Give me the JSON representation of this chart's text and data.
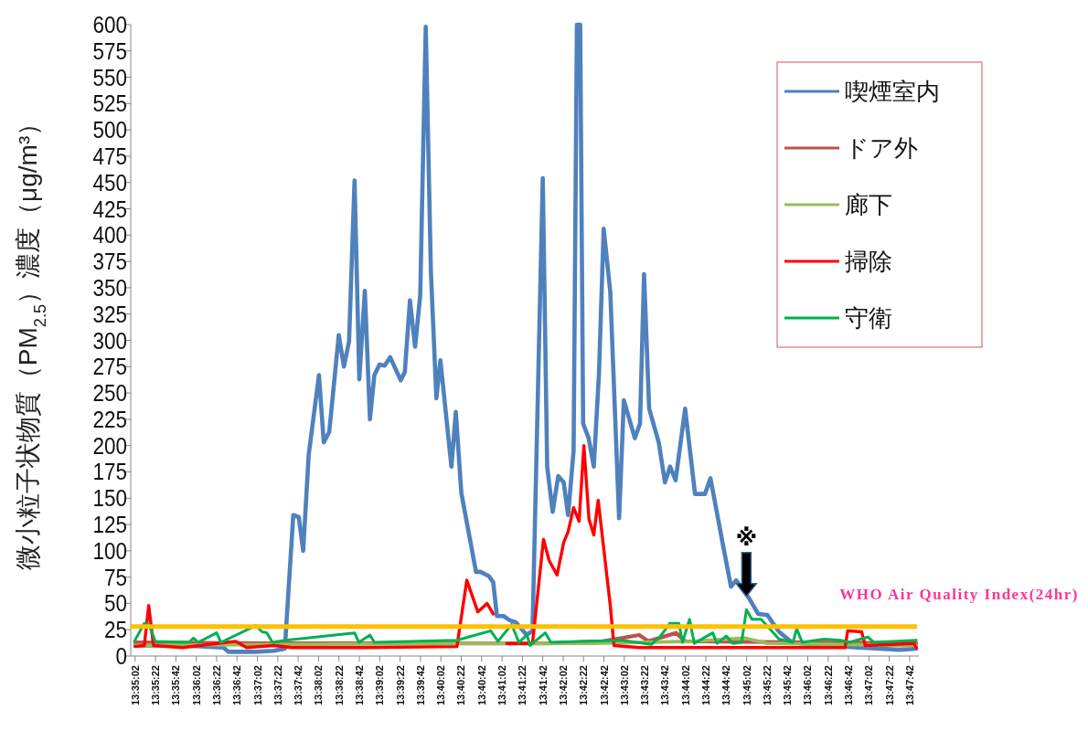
{
  "chart_data": {
    "type": "line",
    "ylabel": "微小粒子状物質（PM$_{2.5}$）濃度（μg/m³）",
    "xlim": [
      13.5827,
      13.7975
    ],
    "ylim": [
      0,
      600
    ],
    "yticks": [
      0,
      25,
      50,
      75,
      100,
      125,
      150,
      175,
      200,
      225,
      250,
      275,
      300,
      325,
      350,
      375,
      400,
      425,
      450,
      475,
      500,
      525,
      550,
      575,
      600
    ],
    "xticks": [
      {
        "value": 13.58389,
        "label": "13:35:02"
      },
      {
        "value": 13.58944,
        "label": "13:35:22"
      },
      {
        "value": 13.595,
        "label": "13:35:42"
      },
      {
        "value": 13.60056,
        "label": "13:36:02"
      },
      {
        "value": 13.60611,
        "label": "13:36:22"
      },
      {
        "value": 13.61167,
        "label": "13:36:42"
      },
      {
        "value": 13.61722,
        "label": "13:37:02"
      },
      {
        "value": 13.62278,
        "label": "13:37:22"
      },
      {
        "value": 13.62833,
        "label": "13:37:42"
      },
      {
        "value": 13.63389,
        "label": "13:38:02"
      },
      {
        "value": 13.63944,
        "label": "13:38:22"
      },
      {
        "value": 13.645,
        "label": "13:38:42"
      },
      {
        "value": 13.65056,
        "label": "13:39:02"
      },
      {
        "value": 13.65611,
        "label": "13:39:22"
      },
      {
        "value": 13.66167,
        "label": "13:39:42"
      },
      {
        "value": 13.66722,
        "label": "13:40:02"
      },
      {
        "value": 13.67278,
        "label": "13:40:22"
      },
      {
        "value": 13.67833,
        "label": "13:40:42"
      },
      {
        "value": 13.68389,
        "label": "13:41:02"
      },
      {
        "value": 13.68944,
        "label": "13:41:22"
      },
      {
        "value": 13.695,
        "label": "13:41:42"
      },
      {
        "value": 13.70056,
        "label": "13:42:02"
      },
      {
        "value": 13.70611,
        "label": "13:42:22"
      },
      {
        "value": 13.71167,
        "label": "13:42:42"
      },
      {
        "value": 13.71722,
        "label": "13:43:02"
      },
      {
        "value": 13.72278,
        "label": "13:43:22"
      },
      {
        "value": 13.72833,
        "label": "13:43:42"
      },
      {
        "value": 13.73389,
        "label": "13:44:02"
      },
      {
        "value": 13.73944,
        "label": "13:44:22"
      },
      {
        "value": 13.745,
        "label": "13:44:42"
      },
      {
        "value": 13.75056,
        "label": "13:45:02"
      },
      {
        "value": 13.75611,
        "label": "13:45:22"
      },
      {
        "value": 13.76167,
        "label": "13:45:42"
      },
      {
        "value": 13.76722,
        "label": "13:46:02"
      },
      {
        "value": 13.77278,
        "label": "13:46:22"
      },
      {
        "value": 13.77833,
        "label": "13:46:42"
      },
      {
        "value": 13.78389,
        "label": "13:47:02"
      },
      {
        "value": 13.78944,
        "label": "13:47:22"
      },
      {
        "value": 13.795,
        "label": "13:47:42"
      }
    ],
    "legend": "top right",
    "series": [
      {
        "name": "喫煙室内",
        "color": "#4f81bd",
        "x": [
          13.5839,
          13.5968,
          13.608,
          13.6093,
          13.6168,
          13.6217,
          13.6247,
          13.627,
          13.6285,
          13.6297,
          13.6312,
          13.634,
          13.6353,
          13.6368,
          13.6394,
          13.6408,
          13.6422,
          13.6437,
          13.645,
          13.6465,
          13.6479,
          13.6491,
          13.6505,
          13.6519,
          13.6534,
          13.6563,
          13.6574,
          13.6588,
          13.6602,
          13.6616,
          13.6631,
          13.6645,
          13.666,
          13.6671,
          13.6701,
          13.6713,
          13.6728,
          13.6768,
          13.678,
          13.6803,
          13.6815,
          13.6825,
          13.6843,
          13.686,
          13.6877,
          13.6906,
          13.6922,
          13.695,
          13.6962,
          13.6977,
          13.6992,
          13.7007,
          13.7019,
          13.7034,
          13.7043,
          13.7052,
          13.706,
          13.7075,
          13.7089,
          13.7103,
          13.7116,
          13.7134,
          13.7158,
          13.7171,
          13.7201,
          13.7215,
          13.7226,
          13.724,
          13.7266,
          13.7283,
          13.7297,
          13.7312,
          13.7338,
          13.7365,
          13.7392,
          13.7407,
          13.7443,
          13.7463,
          13.7477,
          13.7512,
          13.7537,
          13.7562,
          13.7594,
          13.7629,
          13.7712,
          13.7811,
          13.7923,
          13.7968
        ],
        "values": [
          10,
          10,
          8,
          4,
          4,
          5,
          7,
          134,
          132,
          100,
          191,
          267,
          203,
          213,
          305,
          275,
          299,
          452,
          263,
          347,
          225,
          267,
          277,
          276,
          284,
          262,
          270,
          338,
          294,
          343,
          598,
          366,
          245,
          281,
          180,
          232,
          155,
          80,
          80,
          76,
          70,
          38,
          38,
          34,
          32,
          20,
          24,
          454,
          180,
          137,
          171,
          165,
          134,
          195,
          600,
          600,
          221,
          207,
          180,
          267,
          406,
          346,
          131,
          243,
          207,
          221,
          363,
          235,
          203,
          165,
          180,
          167,
          235,
          154,
          154,
          169,
          102,
          66,
          72,
          55,
          40,
          39,
          23,
          13,
          10,
          8,
          6,
          7
        ]
      },
      {
        "name": "ドア外",
        "color": "#c0504d",
        "x": [
          13.5839,
          13.6217,
          13.6965,
          13.7114,
          13.7213,
          13.7238,
          13.7313,
          13.7338,
          13.7968
        ],
        "values": [
          13,
          12,
          12,
          14,
          20,
          14,
          22,
          14,
          12
        ]
      },
      {
        "name": "廊下",
        "color": "#9bbb59",
        "x": [
          13.5839,
          13.6217,
          13.6716,
          13.7089,
          13.7363,
          13.75,
          13.7562,
          13.7968
        ],
        "values": [
          10,
          11,
          12,
          12,
          14,
          17,
          12,
          10
        ]
      },
      {
        "name": "掃除",
        "color": "#ff0000",
        "x": [
          13.5839,
          13.5864,
          13.5876,
          13.5889,
          13.5968,
          13.6113,
          13.6143,
          13.6217,
          13.6267,
          13.6467,
          13.6716,
          13.6743,
          13.6773,
          13.6798,
          13.6815,
          13.6834,
          13.6852,
          13.6922,
          13.6952,
          13.6967,
          13.6989,
          13.7007,
          13.7019,
          13.7034,
          13.7049,
          13.7062,
          13.7076,
          13.7089,
          13.7101,
          13.7134,
          13.7144,
          13.7213,
          13.7463,
          13.7774,
          13.7781,
          13.7819,
          13.7829,
          13.7961,
          13.7968
        ],
        "values": [
          9,
          10,
          48,
          10,
          8,
          14,
          8,
          10,
          8,
          8,
          9,
          72,
          42,
          50,
          40,
          null,
          12,
          12,
          111,
          91,
          77,
          108,
          118,
          141,
          128,
          200,
          130,
          115,
          148,
          48,
          10,
          8,
          8,
          8,
          24,
          23,
          10,
          12,
          8
        ]
      },
      {
        "name": "守衛",
        "color": "#00b050",
        "x": [
          13.5837,
          13.5864,
          13.5876,
          13.5894,
          13.5986,
          13.5998,
          13.6011,
          13.6061,
          13.6073,
          13.6168,
          13.6185,
          13.6198,
          13.6213,
          13.625,
          13.6437,
          13.6449,
          13.6479,
          13.6491,
          13.6716,
          13.6808,
          13.6828,
          13.6865,
          13.6885,
          13.6907,
          13.6915,
          13.6957,
          13.6972,
          13.7164,
          13.7246,
          13.7271,
          13.7296,
          13.7321,
          13.7331,
          13.735,
          13.7363,
          13.7413,
          13.7425,
          13.745,
          13.7468,
          13.7492,
          13.7505,
          13.752,
          13.7545,
          13.7594,
          13.7632,
          13.7642,
          13.7657,
          13.7716,
          13.7761,
          13.7786,
          13.7836,
          13.7853,
          13.7968
        ],
        "values": [
          14,
          31,
          30,
          14,
          13,
          17,
          13,
          22,
          13,
          29,
          23,
          22,
          13,
          15,
          22,
          13,
          20,
          13,
          15,
          24,
          14,
          30,
          13,
          20,
          10,
          22,
          13,
          15,
          11,
          19,
          31,
          31,
          13,
          35,
          12,
          22,
          12,
          19,
          12,
          13,
          44,
          35,
          35,
          16,
          13,
          26,
          13,
          16,
          15,
          13,
          18,
          13,
          15
        ]
      }
    ],
    "ref_lines": [
      {
        "axis": "y",
        "value": 28,
        "label": "WHO Air Quality Index(24hr)",
        "color": "#ffc000"
      }
    ],
    "annotations": [
      {
        "text": "※",
        "x": 13.7505,
        "y": 55
      }
    ]
  }
}
